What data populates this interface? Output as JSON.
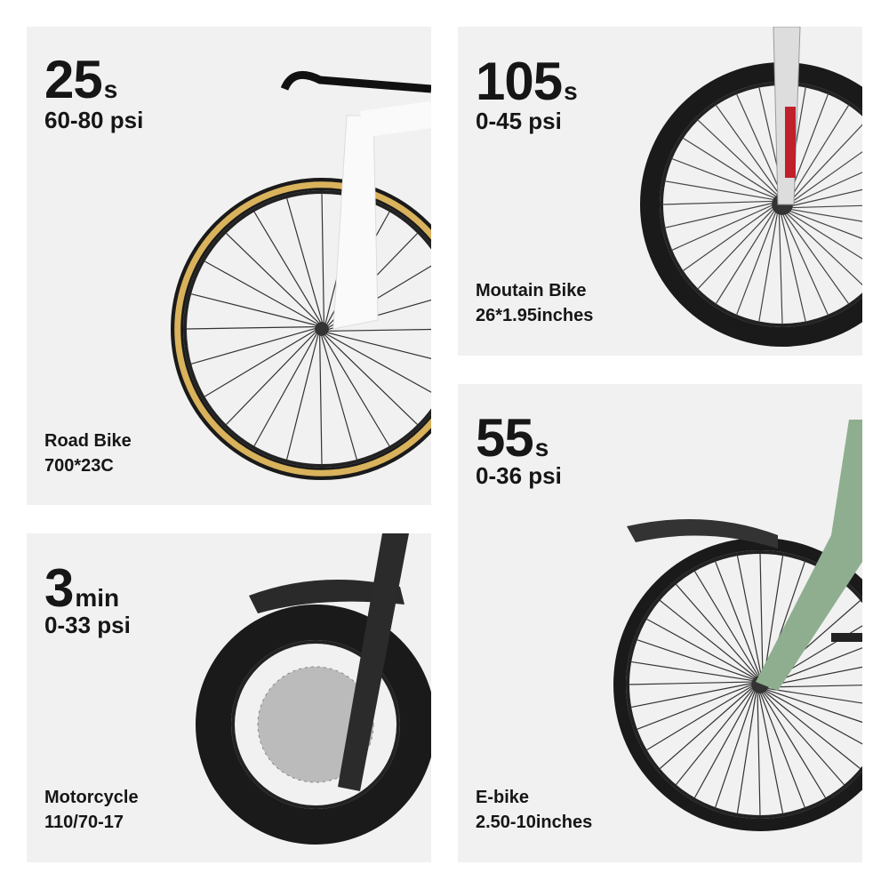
{
  "panels": [
    {
      "id": "road",
      "time": "25",
      "unit": "s",
      "pressure": "60-80 psi",
      "name": "Road Bike",
      "tire": "700*23C"
    },
    {
      "id": "mtb",
      "time": "105",
      "unit": "s",
      "pressure": "0-45 psi",
      "name": "Moutain Bike",
      "tire": "26*1.95inches"
    },
    {
      "id": "moto",
      "time": "3",
      "unit": "min",
      "pressure": "0-33 psi",
      "name": "Motorcycle",
      "tire": "110/70-17"
    },
    {
      "id": "ebike",
      "time": "55",
      "unit": "s",
      "pressure": "0-36 psi",
      "name": "E-bike",
      "tire": "2.50-10inches"
    }
  ],
  "colors": {
    "panel_bg": "#f1f1f1",
    "text": "#161616",
    "road_sidewall": "#d9b25c",
    "ebike_frame": "#8fae8f",
    "mtb_accent": "#c0202a"
  }
}
